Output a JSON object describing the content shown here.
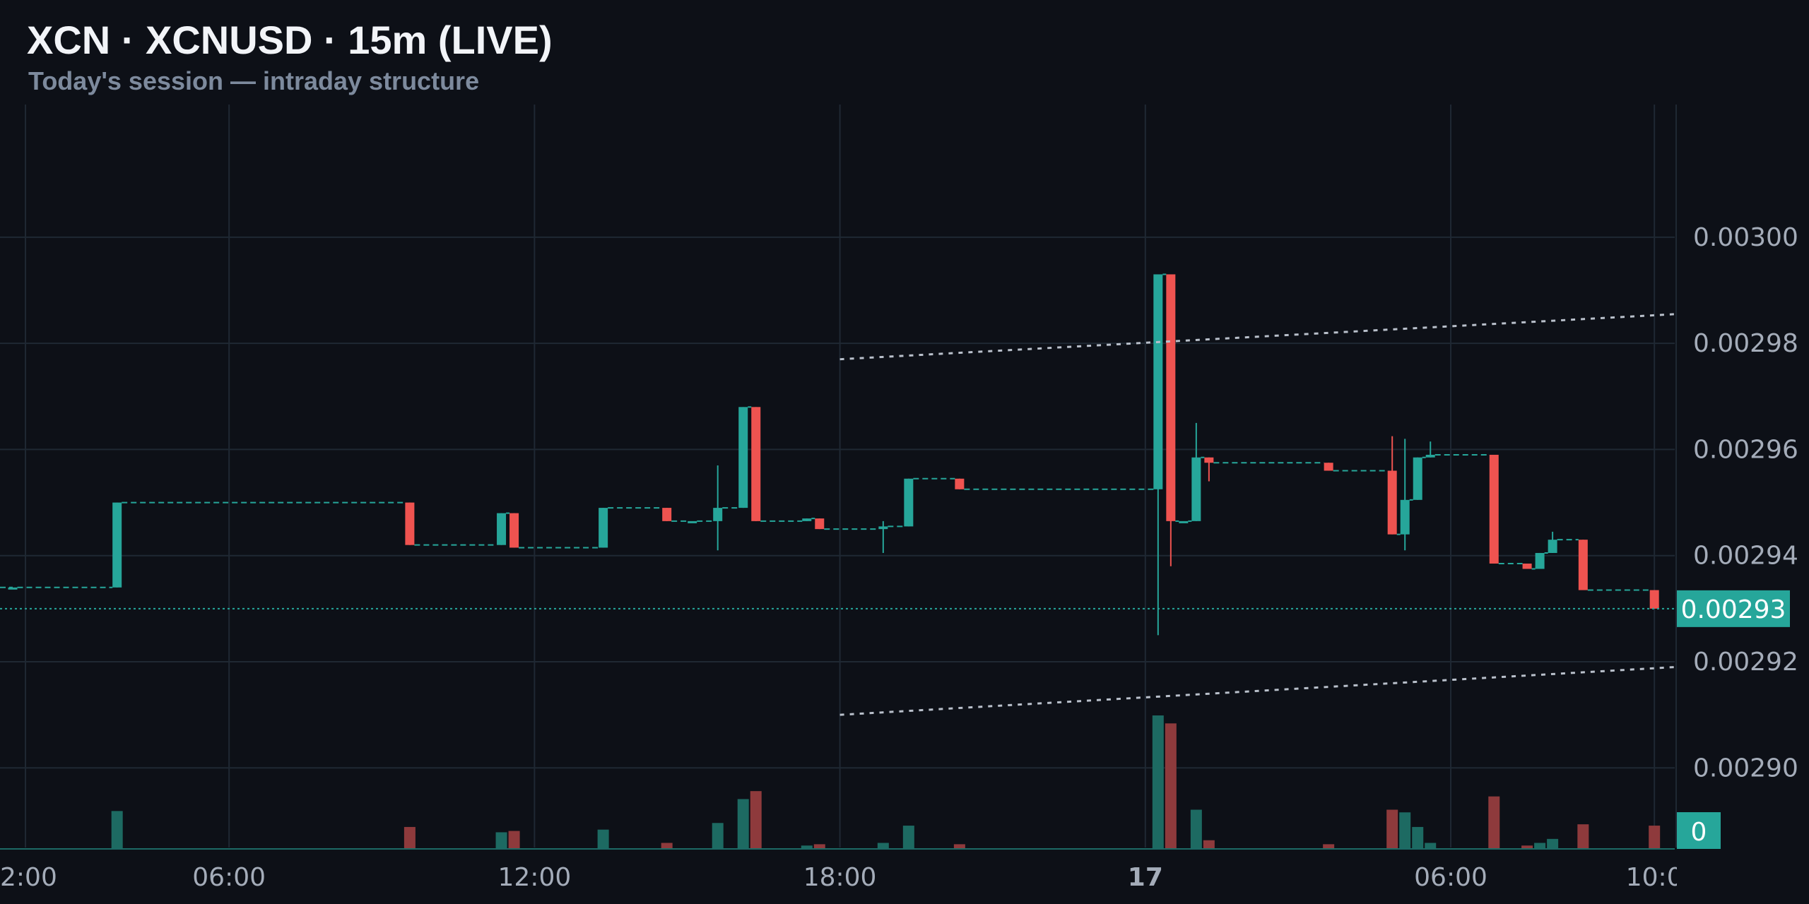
{
  "header": {
    "title": "XCN · XCNUSD · 15m (LIVE)",
    "subtitle": "Today's session — intraday structure"
  },
  "colors": {
    "background": "#0d1017",
    "grid": "#1f2833",
    "up": "#26a69a",
    "down": "#ef5350",
    "up_volume": "#1d6a62",
    "down_volume": "#8e3a3c",
    "axis_text": "#a4acb9",
    "trendline": "#b9c0cb",
    "price_tag_bg": "#26a69a",
    "price_tag_text": "#ffffff"
  },
  "chart_data": {
    "type": "candlestick",
    "interval": "15m",
    "x_tick_labels": [
      "2:00",
      "06:00",
      "12:00",
      "18:00",
      "17",
      "06:00",
      "10:0"
    ],
    "x_tick_bold": [
      false,
      false,
      false,
      false,
      true,
      false,
      false
    ],
    "x_tick_hours": [
      2,
      6,
      12,
      18,
      24,
      30,
      34
    ],
    "x_range_hours": [
      1.5,
      34.4
    ],
    "y_ticks": [
      0.0029,
      0.00292,
      0.00294,
      0.00296,
      0.00298,
      0.003
    ],
    "y_tick_labels": [
      "0.00290",
      "0.00292",
      "0.00294",
      "0.00296",
      "0.00298",
      "0.00300"
    ],
    "y_range": [
      0.002885,
      0.003025
    ],
    "grid": true,
    "last_price": 0.00293,
    "last_price_label": "0.00293",
    "volume_label": "0",
    "candles": [
      {
        "t": 1.75,
        "o": 0.002934,
        "h": 0.002934,
        "l": 0.002934,
        "c": 0.002934
      },
      {
        "t": 3.8,
        "o": 0.002934,
        "h": 0.00295,
        "l": 0.002934,
        "c": 0.00295
      },
      {
        "t": 9.55,
        "o": 0.00295,
        "h": 0.00295,
        "l": 0.002942,
        "c": 0.002942
      },
      {
        "t": 11.35,
        "o": 0.002942,
        "h": 0.002948,
        "l": 0.002942,
        "c": 0.002948
      },
      {
        "t": 11.6,
        "o": 0.002948,
        "h": 0.002948,
        "l": 0.0029415,
        "c": 0.0029415
      },
      {
        "t": 13.35,
        "o": 0.0029415,
        "h": 0.002949,
        "l": 0.0029415,
        "c": 0.002949
      },
      {
        "t": 14.6,
        "o": 0.002949,
        "h": 0.002949,
        "l": 0.0029465,
        "c": 0.0029465
      },
      {
        "t": 15.1,
        "o": 0.0029465,
        "h": 0.0029465,
        "l": 0.0029465,
        "c": 0.0029465
      },
      {
        "t": 15.6,
        "o": 0.0029465,
        "h": 0.002957,
        "l": 0.002941,
        "c": 0.002949
      },
      {
        "t": 16.1,
        "o": 0.002949,
        "h": 0.002968,
        "l": 0.002949,
        "c": 0.002968
      },
      {
        "t": 16.35,
        "o": 0.002968,
        "h": 0.002968,
        "l": 0.0029465,
        "c": 0.0029465
      },
      {
        "t": 17.35,
        "o": 0.0029465,
        "h": 0.002947,
        "l": 0.0029465,
        "c": 0.002947
      },
      {
        "t": 17.6,
        "o": 0.002947,
        "h": 0.002947,
        "l": 0.002945,
        "c": 0.002945
      },
      {
        "t": 18.85,
        "o": 0.002945,
        "h": 0.0029465,
        "l": 0.0029405,
        "c": 0.0029455
      },
      {
        "t": 19.35,
        "o": 0.0029455,
        "h": 0.0029545,
        "l": 0.0029455,
        "c": 0.0029545
      },
      {
        "t": 20.35,
        "o": 0.0029545,
        "h": 0.0029545,
        "l": 0.0029525,
        "c": 0.0029525
      },
      {
        "t": 24.25,
        "o": 0.0029525,
        "h": 0.002993,
        "l": 0.002925,
        "c": 0.002993
      },
      {
        "t": 24.5,
        "o": 0.002993,
        "h": 0.002993,
        "l": 0.002938,
        "c": 0.0029465
      },
      {
        "t": 24.75,
        "o": 0.0029465,
        "h": 0.0029465,
        "l": 0.0029465,
        "c": 0.0029465
      },
      {
        "t": 25.0,
        "o": 0.0029465,
        "h": 0.002965,
        "l": 0.0029465,
        "c": 0.0029585
      },
      {
        "t": 25.25,
        "o": 0.0029585,
        "h": 0.0029585,
        "l": 0.002954,
        "c": 0.0029575
      },
      {
        "t": 27.6,
        "o": 0.0029575,
        "h": 0.0029575,
        "l": 0.002956,
        "c": 0.002956
      },
      {
        "t": 28.85,
        "o": 0.002956,
        "h": 0.0029625,
        "l": 0.002944,
        "c": 0.002944
      },
      {
        "t": 29.1,
        "o": 0.002944,
        "h": 0.002962,
        "l": 0.002941,
        "c": 0.0029505
      },
      {
        "t": 29.35,
        "o": 0.0029505,
        "h": 0.0029585,
        "l": 0.0029505,
        "c": 0.0029585
      },
      {
        "t": 29.6,
        "o": 0.0029585,
        "h": 0.0029615,
        "l": 0.0029585,
        "c": 0.002959
      },
      {
        "t": 30.85,
        "o": 0.002959,
        "h": 0.002959,
        "l": 0.0029385,
        "c": 0.0029385
      },
      {
        "t": 31.5,
        "o": 0.0029385,
        "h": 0.0029385,
        "l": 0.0029375,
        "c": 0.0029375
      },
      {
        "t": 31.75,
        "o": 0.0029375,
        "h": 0.0029405,
        "l": 0.0029375,
        "c": 0.0029405
      },
      {
        "t": 32.0,
        "o": 0.0029405,
        "h": 0.0029445,
        "l": 0.0029405,
        "c": 0.002943
      },
      {
        "t": 32.6,
        "o": 0.002943,
        "h": 0.002943,
        "l": 0.0029335,
        "c": 0.0029335
      },
      {
        "t": 34.0,
        "o": 0.0029335,
        "h": 0.0029335,
        "l": 0.00293,
        "c": 0.00293
      }
    ],
    "volume": [
      {
        "t": 3.8,
        "v": 28,
        "up": true
      },
      {
        "t": 9.55,
        "v": 16,
        "up": false
      },
      {
        "t": 11.35,
        "v": 12,
        "up": true
      },
      {
        "t": 11.6,
        "v": 13,
        "up": false
      },
      {
        "t": 13.35,
        "v": 14,
        "up": true
      },
      {
        "t": 14.6,
        "v": 4,
        "up": false
      },
      {
        "t": 15.6,
        "v": 19,
        "up": true
      },
      {
        "t": 16.1,
        "v": 37,
        "up": true
      },
      {
        "t": 16.35,
        "v": 43,
        "up": false
      },
      {
        "t": 17.35,
        "v": 2,
        "up": true
      },
      {
        "t": 17.6,
        "v": 3,
        "up": false
      },
      {
        "t": 18.85,
        "v": 4,
        "up": true
      },
      {
        "t": 19.35,
        "v": 17,
        "up": true
      },
      {
        "t": 20.35,
        "v": 3,
        "up": false
      },
      {
        "t": 24.25,
        "v": 100,
        "up": true
      },
      {
        "t": 24.5,
        "v": 94,
        "up": false
      },
      {
        "t": 25.0,
        "v": 29,
        "up": true
      },
      {
        "t": 25.25,
        "v": 6,
        "up": false
      },
      {
        "t": 27.6,
        "v": 3,
        "up": false
      },
      {
        "t": 28.85,
        "v": 29,
        "up": false
      },
      {
        "t": 29.1,
        "v": 27,
        "up": true
      },
      {
        "t": 29.35,
        "v": 16,
        "up": true
      },
      {
        "t": 29.6,
        "v": 4,
        "up": true
      },
      {
        "t": 30.85,
        "v": 39,
        "up": false
      },
      {
        "t": 31.5,
        "v": 2,
        "up": false
      },
      {
        "t": 31.75,
        "v": 4,
        "up": true
      },
      {
        "t": 32.0,
        "v": 7,
        "up": true
      },
      {
        "t": 32.6,
        "v": 18,
        "up": false
      },
      {
        "t": 34.0,
        "v": 17,
        "up": false
      }
    ],
    "trendlines": [
      {
        "from": [
          18.0,
          0.002977
        ],
        "to": [
          34.4,
          0.0029855
        ]
      },
      {
        "from": [
          18.0,
          0.00291
        ],
        "to": [
          34.4,
          0.002919
        ]
      }
    ],
    "trendline_style": "dotted"
  }
}
